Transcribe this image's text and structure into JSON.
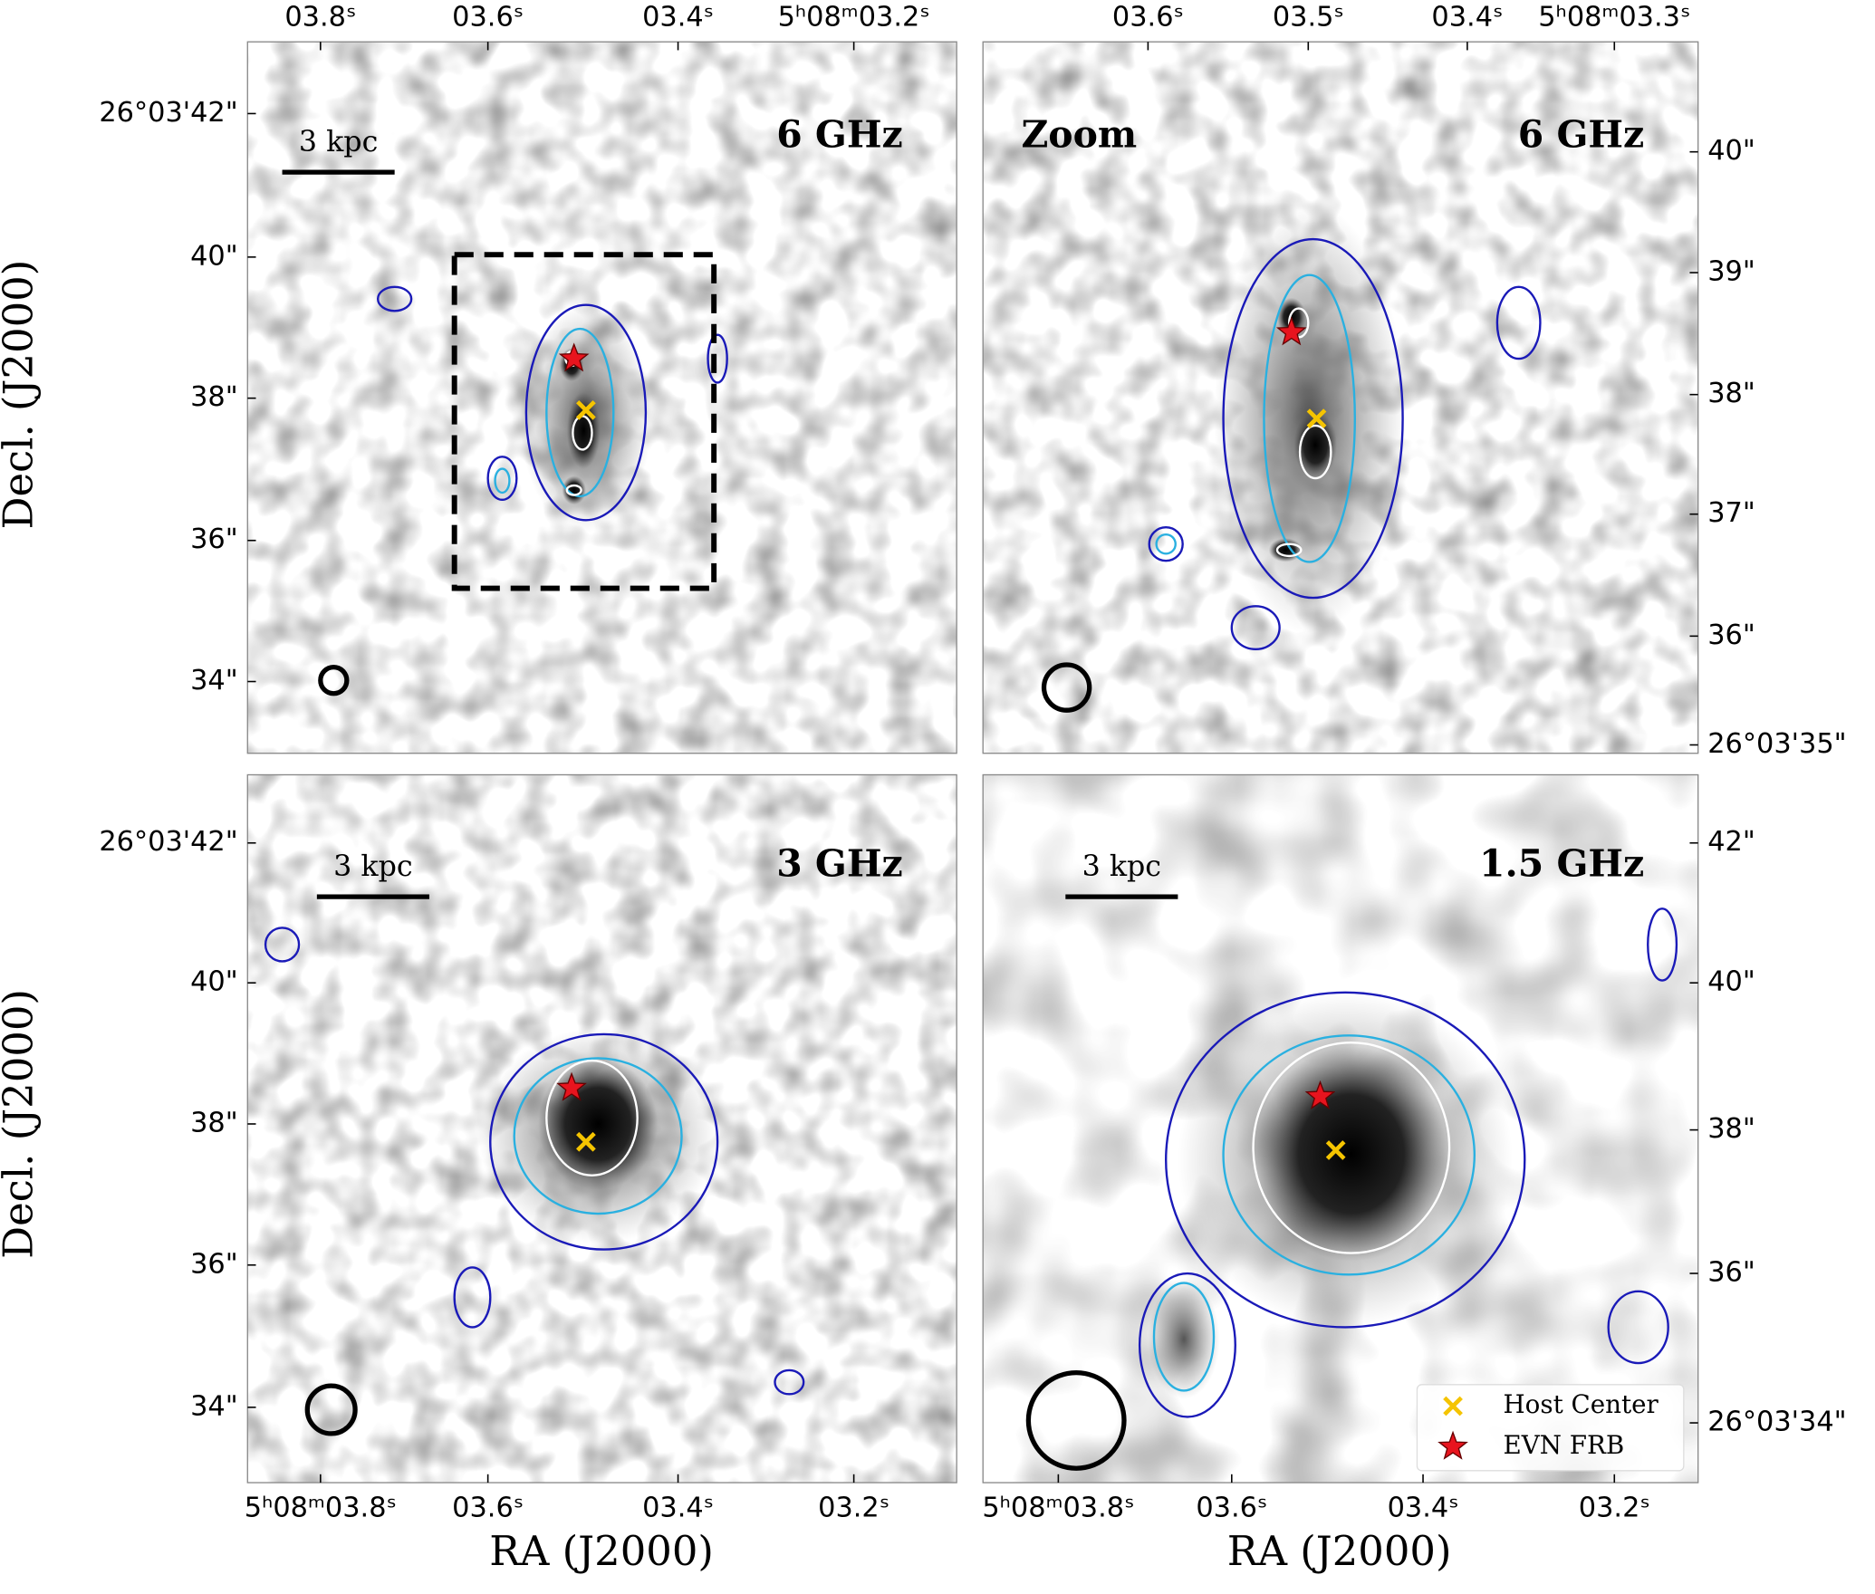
{
  "y_label": "Decl. (J2000)",
  "x_label": "RA (J2000)",
  "panels": [
    {
      "band": "6 GHz",
      "scale_bar": "3 kpc",
      "x_ticks": [
        "03.8ˢ",
        "03.6ˢ",
        "03.4ˢ",
        "5ʰ08ᵐ03.2ˢ"
      ],
      "y_ticks": [
        "26°03'42\"",
        "40\"",
        "38\"",
        "36\"",
        "34\""
      ]
    },
    {
      "title": "Zoom",
      "band": "6 GHz",
      "x_ticks": [
        "03.6ˢ",
        "03.5ˢ",
        "03.4ˢ",
        "5ʰ08ᵐ03.3ˢ"
      ],
      "y_ticks": [
        "40\"",
        "39\"",
        "38\"",
        "37\"",
        "36\"",
        "26°03'35\""
      ]
    },
    {
      "band": "3 GHz",
      "scale_bar": "3 kpc",
      "x_ticks": [
        "5ʰ08ᵐ03.8ˢ",
        "03.6ˢ",
        "03.4ˢ",
        "03.2ˢ"
      ],
      "y_ticks": [
        "26°03'42\"",
        "40\"",
        "38\"",
        "36\"",
        "34\""
      ]
    },
    {
      "band": "1.5 GHz",
      "scale_bar": "3 kpc",
      "x_ticks": [
        "5ʰ08ᵐ03.8ˢ",
        "03.6ˢ",
        "03.4ˢ",
        "03.2ˢ"
      ],
      "y_ticks": [
        "42\"",
        "40\"",
        "38\"",
        "36\"",
        "26°03'34\""
      ]
    }
  ],
  "legend": [
    "Host Center",
    "EVN FRB"
  ]
}
